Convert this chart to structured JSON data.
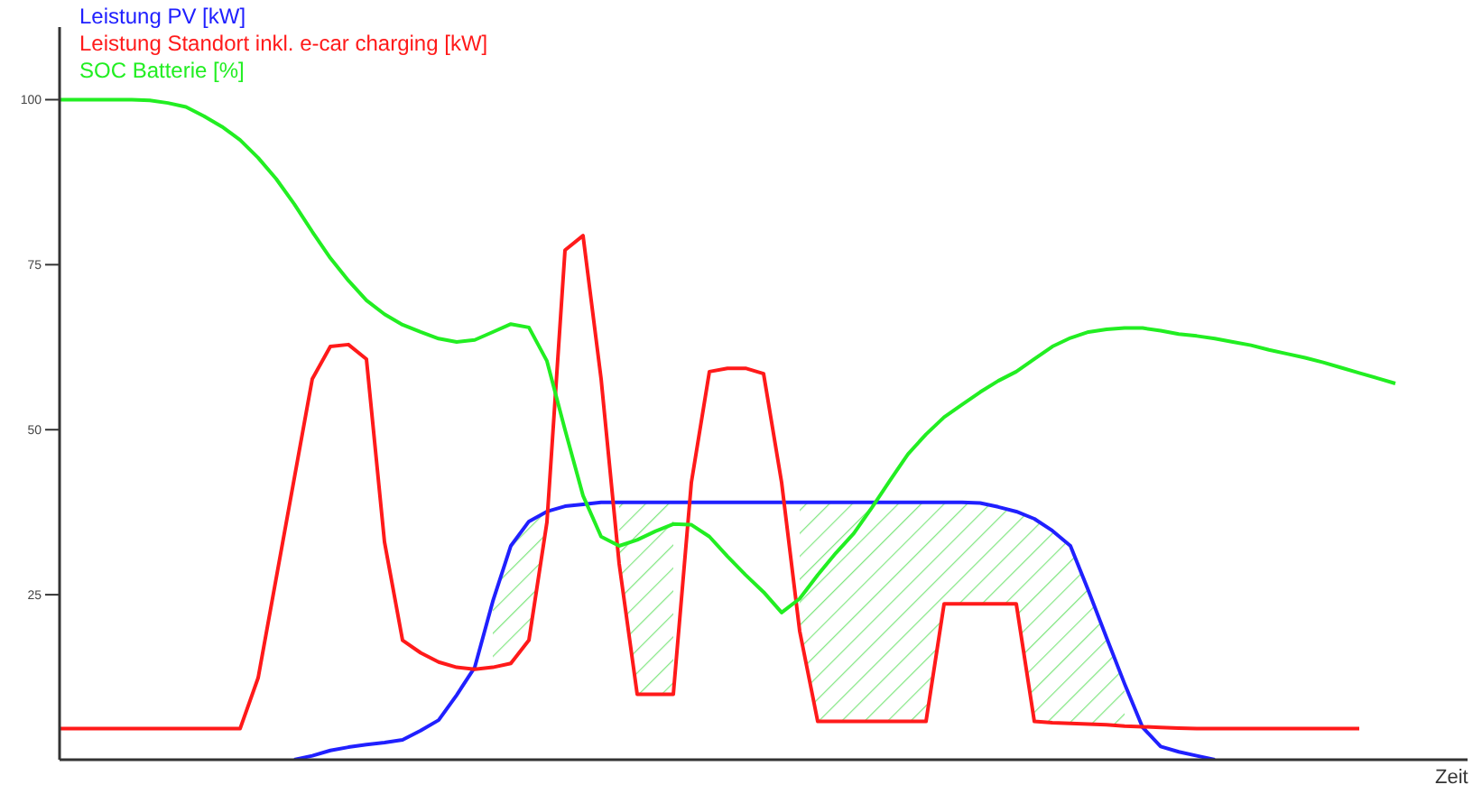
{
  "chart_data": {
    "type": "line",
    "xlabel": "Zeit",
    "categories": [
      null,
      null,
      null,
      null,
      null,
      null,
      null,
      null,
      null,
      null,
      null,
      null,
      null,
      null,
      null,
      null,
      null,
      null,
      null,
      null,
      null,
      null,
      null,
      null,
      null,
      null,
      null,
      null,
      null,
      null,
      null,
      null,
      null,
      null,
      null,
      null,
      null,
      null,
      null,
      null,
      null,
      null,
      null,
      null,
      null,
      null,
      null,
      null,
      null,
      null,
      null,
      null,
      null,
      null,
      null,
      null,
      null,
      null,
      null,
      null,
      null,
      null,
      null,
      null,
      null,
      null,
      null,
      null,
      null,
      null,
      null,
      null,
      null,
      null,
      null,
      null,
      null,
      null,
      null
    ],
    "ylim": [
      0,
      111
    ],
    "yticks": [
      25,
      50,
      75,
      100
    ],
    "legend": "top left",
    "line_style": "solid",
    "series": [
      {
        "name": "Leistung PV [kW]",
        "color": "#2020ff",
        "values": [
          null,
          null,
          null,
          null,
          null,
          null,
          null,
          null,
          null,
          null,
          null,
          null,
          null,
          0,
          0.6,
          1.4,
          1.9,
          2.3,
          2.6,
          3.0,
          4.4,
          6.0,
          9.8,
          14.0,
          24,
          32.4,
          36.1,
          37.6,
          38.4,
          38.7,
          39,
          39,
          39,
          39,
          39,
          39,
          39,
          39,
          39,
          39,
          39,
          39,
          39,
          39,
          39,
          39,
          39,
          39,
          39,
          39,
          39,
          38.9,
          38.3,
          37.6,
          36.5,
          34.7,
          32.4,
          25.6,
          18.5,
          11.5,
          4.9,
          2.0,
          1.2,
          0.6,
          0,
          null,
          null,
          null,
          null,
          null,
          null,
          null,
          null,
          null,
          null,
          null,
          null,
          null,
          null
        ],
        "lower": [
          null,
          null,
          null,
          null,
          null,
          null,
          null,
          null,
          null,
          null,
          null,
          null,
          null,
          null,
          null,
          null,
          null,
          null,
          null,
          null,
          null,
          null,
          null,
          null,
          14.0,
          14.6,
          18.1,
          36,
          null,
          null,
          null,
          29.7,
          9.9,
          9.9,
          9.9,
          null,
          null,
          null,
          null,
          null,
          null,
          19.5,
          5.8,
          5.8,
          5.8,
          5.8,
          5.8,
          5.8,
          5.8,
          23.6,
          23.6,
          23.6,
          23.6,
          23.6,
          5.8,
          5.6,
          5.5,
          5.4,
          5.3,
          5.1,
          null,
          null,
          null,
          null,
          null,
          null,
          null,
          null,
          null,
          null,
          null,
          null,
          null,
          null,
          null,
          null,
          null,
          null,
          null
        ],
        "upper": [
          null,
          null,
          null,
          null,
          null,
          null,
          null,
          null,
          null,
          null,
          null,
          null,
          null,
          null,
          null,
          null,
          null,
          null,
          null,
          null,
          null,
          null,
          null,
          null,
          24,
          32.4,
          36.1,
          37.6,
          null,
          null,
          null,
          39,
          39,
          39,
          39,
          null,
          null,
          null,
          null,
          null,
          null,
          39,
          39,
          39,
          39,
          39,
          39,
          39,
          39,
          39,
          39,
          38.9,
          38.3,
          37.6,
          36.5,
          34.7,
          32.4,
          25.6,
          18.5,
          11.5,
          null,
          null,
          null,
          null,
          null,
          null,
          null,
          null,
          null,
          null,
          null,
          null,
          null,
          null,
          null,
          null,
          null,
          null,
          null
        ]
      },
      {
        "name": "Leistung Standort inkl. e-car charging [kW]",
        "color": "#ff1a1a",
        "values": [
          4.7,
          4.7,
          4.7,
          4.7,
          4.7,
          4.7,
          4.7,
          4.7,
          4.7,
          4.7,
          4.7,
          12.4,
          27.5,
          42.6,
          57.7,
          62.6,
          62.9,
          60.7,
          33,
          18.1,
          16.2,
          14.8,
          14.0,
          13.7,
          14.0,
          14.6,
          18.1,
          36,
          77.2,
          79.4,
          57.7,
          29.7,
          9.9,
          9.9,
          9.9,
          42,
          58.8,
          59.3,
          59.3,
          58.5,
          42,
          19.5,
          5.8,
          5.8,
          5.8,
          5.8,
          5.8,
          5.8,
          5.8,
          23.6,
          23.6,
          23.6,
          23.6,
          23.6,
          5.8,
          5.6,
          5.5,
          5.4,
          5.3,
          5.1,
          5.0,
          4.9,
          4.8,
          4.7,
          4.7,
          4.7,
          4.7,
          4.7,
          4.7,
          4.7,
          4.7,
          4.7,
          4.7,
          null,
          null,
          null,
          null,
          null,
          null
        ]
      },
      {
        "name": "SOC Batterie [%]",
        "color": "#22ee22",
        "values": [
          100,
          100,
          100,
          100,
          100,
          99.9,
          99.5,
          98.9,
          97.5,
          95.9,
          93.9,
          91.2,
          88,
          84.2,
          80,
          76,
          72.6,
          69.6,
          67.5,
          65.9,
          64.8,
          63.8,
          63.3,
          63.6,
          64.8,
          66,
          65.5,
          60.4,
          50,
          40,
          33.8,
          32.4,
          33.3,
          34.6,
          35.7,
          35.6,
          33.8,
          30.8,
          28,
          25.4,
          22.3,
          24.4,
          28,
          31.3,
          34.3,
          38.2,
          42.3,
          46.3,
          49.3,
          51.9,
          53.8,
          55.7,
          57.4,
          58.8,
          60.7,
          62.6,
          63.9,
          64.8,
          65.2,
          65.4,
          65.4,
          65.0,
          64.5,
          64.2,
          63.8,
          63.3,
          62.8,
          62.1,
          61.5,
          60.9,
          60.2,
          59.4,
          58.6,
          57.8,
          57.0,
          null,
          null,
          null,
          null
        ]
      }
    ]
  }
}
